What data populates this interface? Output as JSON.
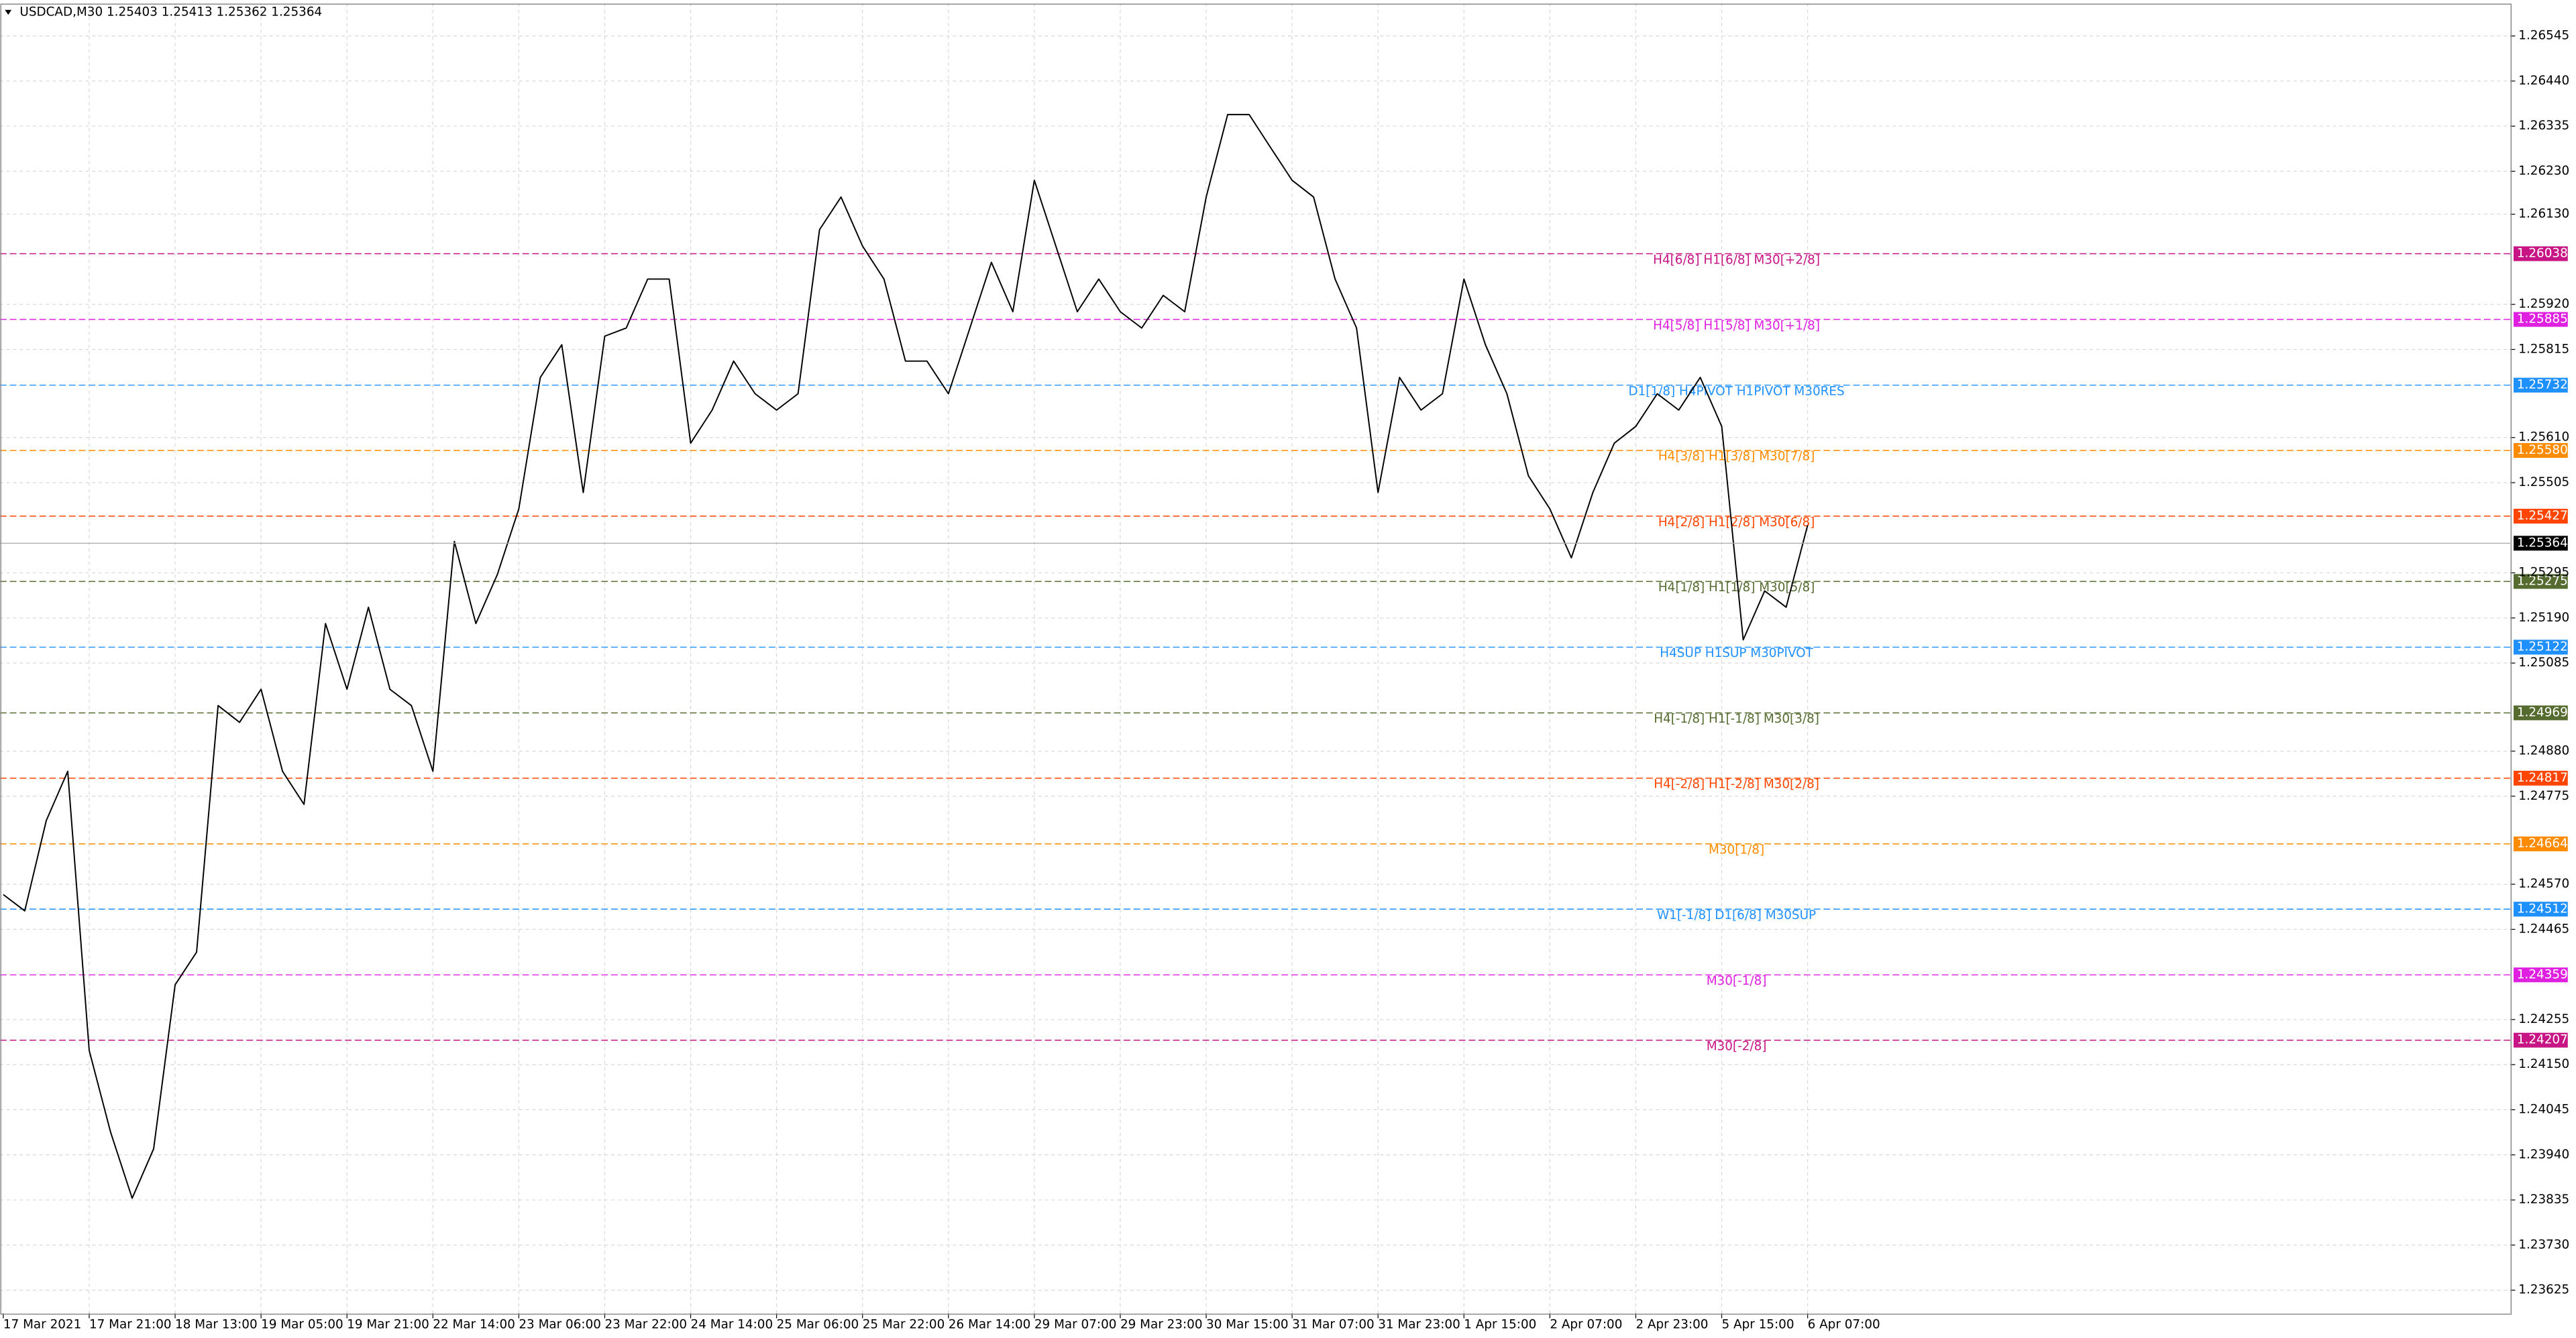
{
  "chart_data": {
    "type": "line",
    "header": "USDCAD,M30  1.25403 1.25413 1.25362 1.25364",
    "categories": [
      "17 Mar 2021",
      null,
      null,
      null,
      "17 Mar 21:00",
      null,
      null,
      null,
      "18 Mar 13:00",
      null,
      null,
      null,
      "19 Mar 05:00",
      null,
      null,
      null,
      "19 Mar 21:00",
      null,
      null,
      null,
      "22 Mar 14:00",
      null,
      null,
      null,
      "23 Mar 06:00",
      null,
      null,
      null,
      "23 Mar 22:00",
      null,
      null,
      null,
      "24 Mar 14:00",
      null,
      null,
      null,
      "25 Mar 06:00",
      null,
      null,
      null,
      "25 Mar 22:00",
      null,
      null,
      null,
      "26 Mar 14:00",
      null,
      null,
      null,
      "29 Mar 07:00",
      null,
      null,
      null,
      "29 Mar 23:00",
      null,
      null,
      null,
      "30 Mar 15:00",
      null,
      null,
      null,
      "31 Mar 07:00",
      null,
      null,
      null,
      "31 Mar 23:00",
      null,
      null,
      null,
      "1 Apr 15:00",
      null,
      null,
      null,
      "2 Apr 07:00",
      null,
      null,
      null,
      "2 Apr 23:00",
      null,
      null,
      null,
      "5 Apr 15:00",
      null,
      null,
      null,
      "6 Apr 07:00"
    ],
    "series": [
      {
        "name": "USDCAD",
        "color": "#000000",
        "values": [
          1.24546,
          1.24508,
          1.24718,
          1.24833,
          1.24183,
          1.23992,
          1.23839,
          1.23954,
          1.24336,
          1.24412,
          1.24986,
          1.24947,
          1.25024,
          1.24833,
          1.24756,
          1.25177,
          1.25024,
          1.25215,
          1.25024,
          1.24986,
          1.24833,
          1.25368,
          1.25177,
          1.25291,
          1.25444,
          1.2575,
          1.25826,
          1.25482,
          1.25846,
          1.25865,
          1.25979,
          1.25979,
          1.25597,
          1.25674,
          1.25788,
          1.25712,
          1.25674,
          1.25712,
          1.26094,
          1.2617,
          1.26056,
          1.25979,
          1.25788,
          1.25788,
          1.25712,
          1.25865,
          1.26018,
          1.25903,
          1.26209,
          1.26056,
          1.25903,
          1.25979,
          1.25903,
          1.25865,
          1.25941,
          1.25903,
          1.2617,
          1.26362,
          1.26362,
          1.26285,
          1.26209,
          1.2617,
          1.25979,
          1.25865,
          1.25482,
          1.2575,
          1.25674,
          1.25712,
          1.25979,
          1.25826,
          1.25712,
          1.25521,
          1.25444,
          1.2533,
          1.25482,
          1.25597,
          1.25636,
          1.25712,
          1.25674,
          1.2575,
          1.25636,
          1.25139,
          1.25253,
          1.25215,
          1.25406
        ]
      }
    ],
    "ylim": [
      1.23571,
      1.26621
    ],
    "yticks": [
      1.26545,
      {
        "value": 1.2644,
        "label": "1.26440"
      },
      1.26335,
      {
        "value": 1.2623,
        "label": "1.26230"
      },
      {
        "value": 1.2613,
        "label": "1.26130"
      },
      {
        "value": 1.2592,
        "label": "1.25920"
      },
      1.25815,
      {
        "value": 1.2561,
        "label": "1.25610"
      },
      1.25505,
      1.25295,
      {
        "value": 1.2519,
        "label": "1.25190"
      },
      1.25085,
      {
        "value": 1.2488,
        "label": "1.24880"
      },
      1.24775,
      {
        "value": 1.2457,
        "label": "1.24570"
      },
      1.24465,
      1.24255,
      {
        "value": 1.2415,
        "label": "1.24150"
      },
      1.24045,
      {
        "value": 1.2394,
        "label": "1.23940"
      },
      1.23835,
      {
        "value": 1.2373,
        "label": "1.23730"
      },
      1.23625
    ],
    "grid": true,
    "current_price": 1.25364,
    "levels": [
      {
        "name": "H4[6/8] H1[6/8] M30[+2/8]",
        "value": 1.26038,
        "color": "#c71585"
      },
      {
        "name": "H4[5/8] H1[5/8] M30[+1/8]",
        "value": 1.25885,
        "color": "#e020e0"
      },
      {
        "name": "D1[1/8] H4PIVOT H1PIVOT M30RES",
        "value": 1.25732,
        "color": "#1e90ff"
      },
      {
        "name": "H4[3/8] H1[3/8] M30[7/8]",
        "value": 1.2558,
        "value_label": "1.25580",
        "color": "#ff8c00"
      },
      {
        "name": "H4[2/8] H1[2/8] M30[6/8]",
        "value": 1.25427,
        "color": "#ff4500"
      },
      {
        "name": "H4[1/8] H1[1/8] M30[5/8]",
        "value": 1.25275,
        "color": "#556b2f"
      },
      {
        "name": "H4SUP H1SUP M30PIVOT",
        "value": 1.25122,
        "color": "#1e90ff"
      },
      {
        "name": "H4[-1/8] H1[-1/8] M30[3/8]",
        "value": 1.24969,
        "color": "#556b2f"
      },
      {
        "name": "H4[-2/8] H1[-2/8] M30[2/8]",
        "value": 1.24817,
        "color": "#ff4500"
      },
      {
        "name": "M30[1/8]",
        "value": 1.24664,
        "color": "#ff8c00"
      },
      {
        "name": "W1[-1/8] D1[6/8] M30SUP",
        "value": 1.24512,
        "color": "#1e90ff"
      },
      {
        "name": "M30[-1/8]",
        "value": 1.24359,
        "color": "#e020e0"
      },
      {
        "name": "M30[-2/8]",
        "value": 1.24207,
        "color": "#c71585"
      }
    ]
  }
}
